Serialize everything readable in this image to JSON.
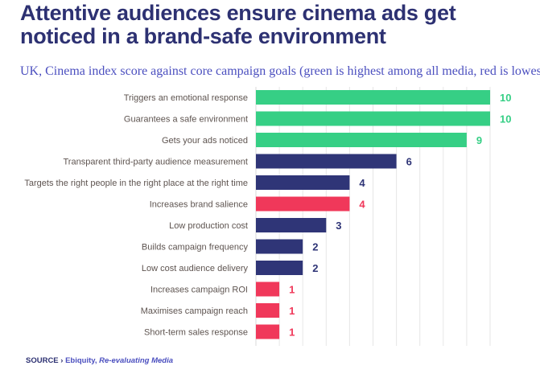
{
  "title": "Attentive audiences ensure cinema ads get noticed in a brand-safe environment",
  "subtitle": "UK, Cinema index score against core campaign goals (green is highest among all media, red is lowest)",
  "source": {
    "label": "SOURCE ›",
    "publisher": "Ebiquity,",
    "report": "Re-evaluating Media"
  },
  "colors": {
    "highest": "#36cf85",
    "neutral": "#2f3577",
    "lowest": "#f0385a"
  },
  "chart_data": {
    "type": "bar",
    "orientation": "horizontal",
    "title": "UK, Cinema index score against core campaign goals (green is highest among all media, red is lowest)",
    "categories": [
      "Triggers an emotional response",
      "Guarantees a safe environment",
      "Gets your ads noticed",
      "Transparent third-party audience measurement",
      "Targets the right people in the right place at the right time",
      "Increases brand salience",
      "Low production cost",
      "Builds campaign frequency",
      "Low cost audience delivery",
      "Increases campaign ROI",
      "Maximises campaign reach",
      "Short-term sales response"
    ],
    "values": [
      10,
      10,
      9,
      6,
      4,
      4,
      3,
      2,
      2,
      1,
      1,
      1
    ],
    "status": [
      "highest",
      "highest",
      "highest",
      "neutral",
      "neutral",
      "lowest",
      "neutral",
      "neutral",
      "neutral",
      "lowest",
      "lowest",
      "lowest"
    ],
    "xlim": [
      0,
      10
    ],
    "grid": true,
    "data_labels": true
  }
}
